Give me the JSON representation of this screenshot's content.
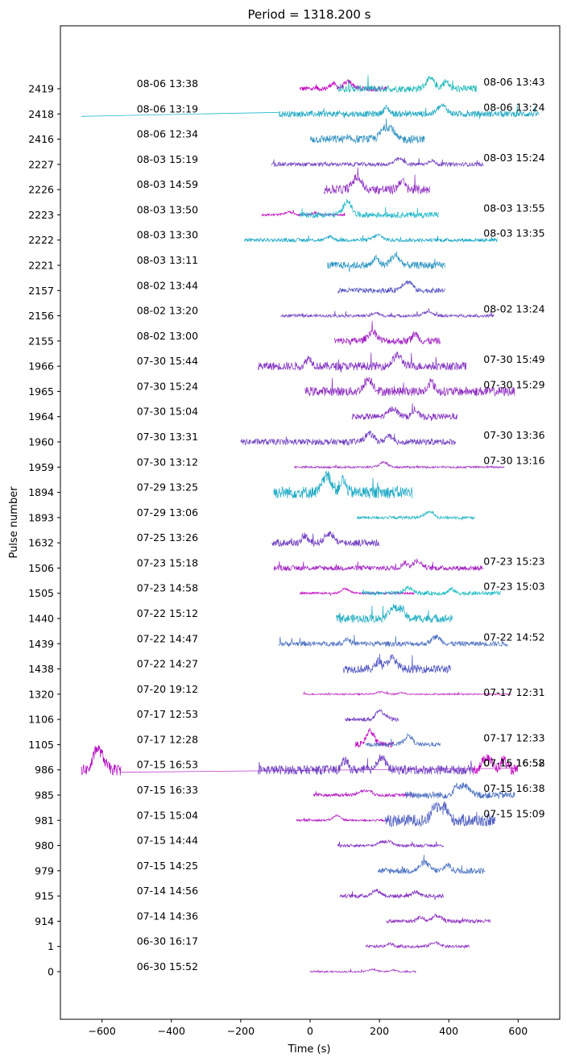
{
  "chart_data": {
    "type": "line",
    "title": "Period = 1318.200 s",
    "xlabel": "Time (s)",
    "ylabel": "Pulse number",
    "xlim": [
      -720,
      720
    ],
    "x_ticks": [
      -600,
      -400,
      -200,
      0,
      200,
      400,
      600
    ],
    "grid": false,
    "pulses": [
      {
        "label": "2419",
        "start": "08-06 13:38",
        "end": "08-06 13:43",
        "segments": [
          [
            -30,
            220,
            "#c000c0",
            0.25
          ],
          [
            80,
            480,
            "#20b8b8",
            0.35
          ]
        ]
      },
      {
        "label": "2418",
        "start": "08-06 13:19",
        "end": "08-06 13:24",
        "segments": [
          [
            -660,
            -90,
            "#20b8c8",
            0.03,
            "flat"
          ],
          [
            -90,
            660,
            "#1aa6c0",
            0.3
          ]
        ]
      },
      {
        "label": "2416",
        "start": "08-06 12:34",
        "end": "",
        "segments": [
          [
            0,
            330,
            "#2e8fc0",
            0.4
          ]
        ]
      },
      {
        "label": "2227",
        "start": "08-03 15:19",
        "end": "08-03 15:24",
        "segments": [
          [
            -110,
            500,
            "#7040c0",
            0.2
          ]
        ]
      },
      {
        "label": "2226",
        "start": "08-03 14:59",
        "end": "",
        "segments": [
          [
            40,
            345,
            "#9030c0",
            0.45
          ]
        ]
      },
      {
        "label": "2223",
        "start": "08-03 13:50",
        "end": "08-03 13:55",
        "segments": [
          [
            -140,
            100,
            "#c000c0",
            0.1
          ],
          [
            -30,
            370,
            "#20b8c8",
            0.3
          ]
        ]
      },
      {
        "label": "2222",
        "start": "08-03 13:30",
        "end": "08-03 13:35",
        "segments": [
          [
            -190,
            540,
            "#18a8c4",
            0.18
          ]
        ]
      },
      {
        "label": "2221",
        "start": "08-03 13:11",
        "end": "",
        "segments": [
          [
            50,
            390,
            "#2a94c2",
            0.35
          ]
        ]
      },
      {
        "label": "2157",
        "start": "08-02 13:44",
        "end": "",
        "segments": [
          [
            80,
            390,
            "#5050c0",
            0.25
          ]
        ]
      },
      {
        "label": "2156",
        "start": "08-02 13:20",
        "end": "08-02 13:24",
        "segments": [
          [
            -85,
            530,
            "#7040c0",
            0.15
          ]
        ]
      },
      {
        "label": "2155",
        "start": "08-02 13:00",
        "end": "",
        "segments": [
          [
            70,
            375,
            "#a020c0",
            0.35
          ]
        ]
      },
      {
        "label": "1966",
        "start": "07-30 15:44",
        "end": "07-30 15:49",
        "segments": [
          [
            -150,
            450,
            "#8030c0",
            0.4
          ]
        ]
      },
      {
        "label": "1965",
        "start": "07-30 15:24",
        "end": "07-30 15:29",
        "segments": [
          [
            -15,
            590,
            "#9030c0",
            0.45
          ]
        ]
      },
      {
        "label": "1964",
        "start": "07-30 15:04",
        "end": "",
        "segments": [
          [
            120,
            425,
            "#8030c0",
            0.3
          ]
        ]
      },
      {
        "label": "1960",
        "start": "07-30 13:31",
        "end": "07-30 13:36",
        "segments": [
          [
            -200,
            420,
            "#7040c0",
            0.3
          ]
        ]
      },
      {
        "label": "1959",
        "start": "07-30 13:12",
        "end": "07-30 13:16",
        "segments": [
          [
            -45,
            560,
            "#a030c0",
            0.1
          ]
        ]
      },
      {
        "label": "1894",
        "start": "07-29 13:25",
        "end": "",
        "segments": [
          [
            -105,
            295,
            "#18a8c4",
            0.6
          ]
        ]
      },
      {
        "label": "1893",
        "start": "07-29 13:06",
        "end": "",
        "segments": [
          [
            135,
            475,
            "#20b4c4",
            0.15
          ]
        ]
      },
      {
        "label": "1632",
        "start": "07-25 13:26",
        "end": "",
        "segments": [
          [
            -110,
            200,
            "#7040c0",
            0.35
          ]
        ]
      },
      {
        "label": "1506",
        "start": "07-23 15:18",
        "end": "07-23 15:23",
        "segments": [
          [
            -105,
            500,
            "#a020c0",
            0.25
          ]
        ]
      },
      {
        "label": "1505",
        "start": "07-23 14:58",
        "end": "07-23 15:03",
        "segments": [
          [
            -30,
            300,
            "#c000c0",
            0.1
          ],
          [
            150,
            550,
            "#10b8c0",
            0.2
          ]
        ]
      },
      {
        "label": "1440",
        "start": "07-22 15:12",
        "end": "",
        "segments": [
          [
            75,
            410,
            "#18aac0",
            0.4
          ]
        ]
      },
      {
        "label": "1439",
        "start": "07-22 14:47",
        "end": "07-22 14:52",
        "segments": [
          [
            -90,
            570,
            "#4c70c0",
            0.25
          ]
        ]
      },
      {
        "label": "1438",
        "start": "07-22 14:27",
        "end": "",
        "segments": [
          [
            95,
            405,
            "#5054c0",
            0.4
          ]
        ]
      },
      {
        "label": "1320",
        "start": "07-20 19:12",
        "end": "",
        "segments": [
          [
            -20,
            580,
            "#c030c0",
            0.08
          ]
        ]
      },
      {
        "label": "1106",
        "start": "07-17 12:53",
        "end": "",
        "segments": [
          [
            100,
            255,
            "#7038c0",
            0.2
          ]
        ]
      },
      {
        "label": "1105",
        "start": "07-17 12:28",
        "end": "07-17 12:33",
        "segments": [
          [
            130,
            240,
            "#c000c0",
            0.3
          ],
          [
            160,
            375,
            "#4c70c0",
            0.2
          ]
        ]
      },
      {
        "label": "986",
        "start": "07-15 16:53",
        "end": "07-15 16:58",
        "segments": [
          [
            -660,
            -545,
            "#b000c0",
            0.55
          ],
          [
            -545,
            590,
            "#c040d0",
            0.03,
            "flat"
          ],
          [
            -150,
            470,
            "#7040c0",
            0.45
          ],
          [
            470,
            600,
            "#c000c0",
            0.5
          ]
        ]
      },
      {
        "label": "985",
        "start": "07-15 16:33",
        "end": "07-15 16:38",
        "segments": [
          [
            10,
            300,
            "#b010c0",
            0.15
          ],
          [
            275,
            590,
            "#4c70c0",
            0.35
          ]
        ]
      },
      {
        "label": "981",
        "start": "07-15 15:04",
        "end": "07-15 15:09",
        "segments": [
          [
            -40,
            230,
            "#b010c0",
            0.1
          ],
          [
            215,
            535,
            "#5060c0",
            0.6
          ]
        ]
      },
      {
        "label": "980",
        "start": "07-15 14:44",
        "end": "",
        "segments": [
          [
            80,
            385,
            "#8030c0",
            0.15
          ]
        ]
      },
      {
        "label": "979",
        "start": "07-15 14:25",
        "end": "",
        "segments": [
          [
            195,
            505,
            "#4870c0",
            0.3
          ]
        ]
      },
      {
        "label": "915",
        "start": "07-14 14:56",
        "end": "",
        "segments": [
          [
            85,
            385,
            "#8030c0",
            0.2
          ]
        ]
      },
      {
        "label": "914",
        "start": "07-14 14:36",
        "end": "",
        "segments": [
          [
            220,
            520,
            "#9030c0",
            0.2
          ]
        ]
      },
      {
        "label": "1",
        "start": "06-30 16:17",
        "end": "",
        "segments": [
          [
            160,
            460,
            "#9030c0",
            0.15
          ]
        ]
      },
      {
        "label": "0",
        "start": "06-30 15:52",
        "end": "",
        "segments": [
          [
            0,
            305,
            "#a030c0",
            0.08
          ]
        ]
      }
    ],
    "extra_annotations": [
      {
        "text": "07-17 12:31",
        "row": 10.8
      },
      {
        "text": "07-15 16:52",
        "row": 8
      }
    ]
  }
}
